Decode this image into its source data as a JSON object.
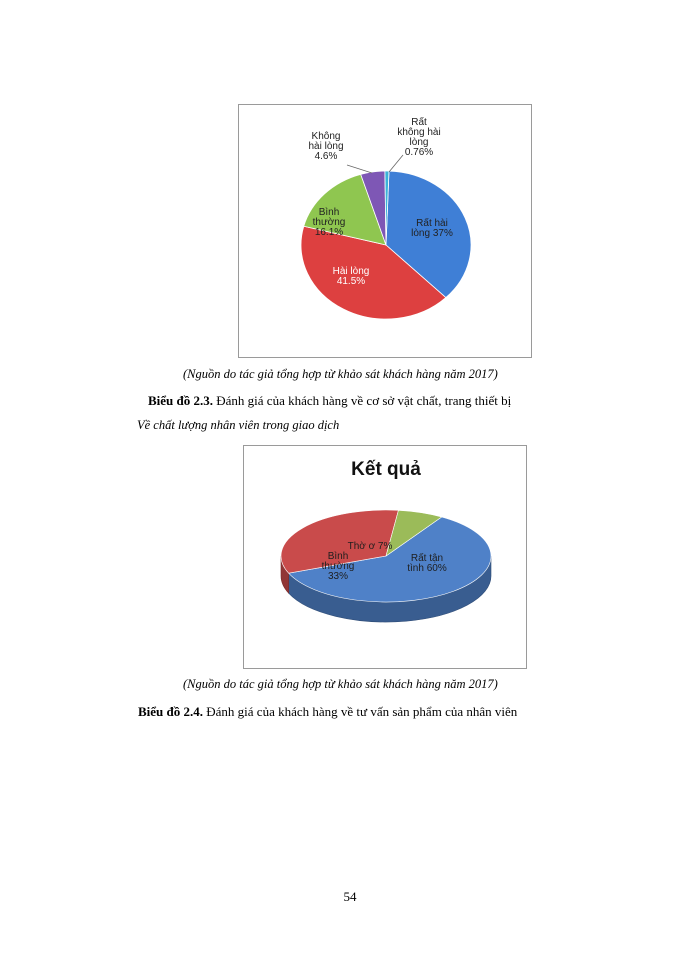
{
  "page": {
    "source_note_1": "(Nguồn do tác giả tổng hợp từ khảo sát khách hàng năm 2017)",
    "caption_1_label": "Biểu đồ 2.3.",
    "caption_1_text": " Đánh giá của khách hàng về cơ sở vật chất, trang thiết bị",
    "subheading": "Về chất lượng nhân viên trong giao dịch",
    "source_note_2": "(Nguồn do tác giả tổng hợp từ khảo sát khách hàng năm 2017)",
    "caption_2_label": "Biểu đồ 2.4.",
    "caption_2_text": " Đánh giá của khách hàng về tư vấn sản phẩm của nhân viên",
    "page_number": "54"
  },
  "chart_data": [
    {
      "type": "pie",
      "title": "",
      "slices": [
        {
          "label_lines": [
            "Rất hài",
            "lòng 37%"
          ],
          "value": 37,
          "color": "#3f7fd6"
        },
        {
          "label_lines": [
            "Hài lòng",
            "41.5%"
          ],
          "value": 41.5,
          "color": "#dd4040"
        },
        {
          "label_lines": [
            "Bình",
            "thường",
            "16.1%"
          ],
          "value": 16.1,
          "color": "#8fc650"
        },
        {
          "label_lines": [
            "Không",
            "hài lòng",
            "4.6%"
          ],
          "value": 4.6,
          "color": "#7e57b5"
        },
        {
          "label_lines": [
            "Rất",
            "không hài",
            "lòng",
            "0.76%"
          ],
          "value": 0.76,
          "color": "#3cb3d8"
        }
      ]
    },
    {
      "type": "pie",
      "title": "Kết quả",
      "style": "3d",
      "slices": [
        {
          "label_lines": [
            "Rất tận",
            "tình 60%"
          ],
          "value": 60,
          "color": "#4f81c8"
        },
        {
          "label_lines": [
            "Bình",
            "thường",
            "33%"
          ],
          "value": 33,
          "color": "#c94b4b"
        },
        {
          "label_lines": [
            "Thờ ơ 7%"
          ],
          "value": 7,
          "color": "#9bbb59"
        }
      ]
    }
  ]
}
